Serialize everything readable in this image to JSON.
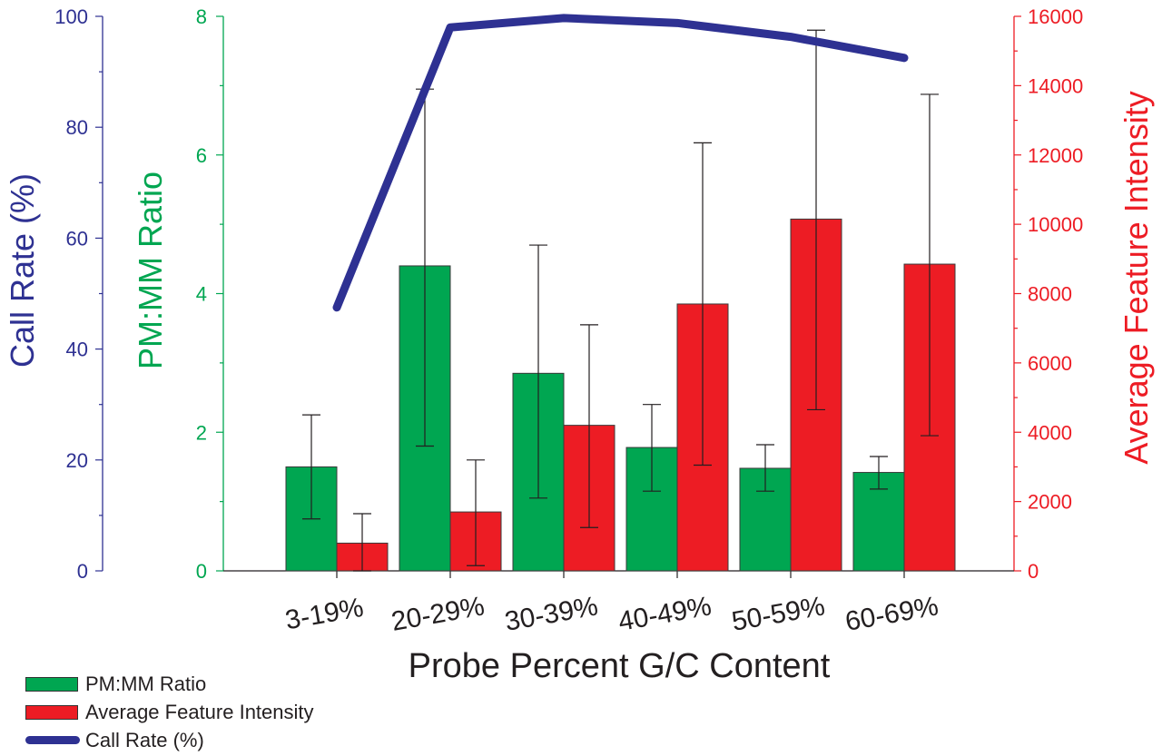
{
  "chart_data": {
    "type": "bar",
    "categories": [
      "3-19%",
      "20-29%",
      "30-39%",
      "40-49%",
      "50-59%",
      "60-69%"
    ],
    "xlabel": "Probe Percent G/C Content",
    "series": [
      {
        "name": "PM:MM Ratio",
        "type": "bar",
        "axis": "pm_mm",
        "color": "#00a651",
        "values": [
          1.5,
          4.4,
          2.85,
          1.78,
          1.48,
          1.42
        ],
        "error_low": [
          0.75,
          1.8,
          1.05,
          1.15,
          1.15,
          1.18
        ],
        "error_high": [
          2.25,
          6.95,
          4.7,
          2.4,
          1.82,
          1.65
        ]
      },
      {
        "name": "Average Feature Intensity",
        "type": "bar",
        "axis": "intensity",
        "color": "#ed1c24",
        "values": [
          800,
          1700,
          4200,
          7700,
          10150,
          8850
        ],
        "error_low": [
          0,
          150,
          1250,
          3050,
          4650,
          3900
        ],
        "error_high": [
          1650,
          3200,
          7100,
          12350,
          15600,
          13750
        ]
      },
      {
        "name": "Call Rate (%)",
        "type": "line",
        "axis": "call_rate",
        "color": "#2e3192",
        "values": [
          47.5,
          98.0,
          99.7,
          98.8,
          96.3,
          92.5
        ]
      }
    ],
    "axes": {
      "call_rate": {
        "label": "Call Rate (%)",
        "min": 0,
        "max": 100,
        "ticks": [
          "0",
          "20",
          "40",
          "60",
          "80",
          "100"
        ],
        "color": "#2e3192"
      },
      "pm_mm": {
        "label": "PM:MM Ratio",
        "min": 0,
        "max": 8,
        "ticks": [
          "0",
          "2",
          "4",
          "6",
          "8"
        ],
        "color": "#00a651"
      },
      "intensity": {
        "label": "Average Feature Intensity",
        "min": 0,
        "max": 16000,
        "ticks": [
          "0",
          "2000",
          "4000",
          "6000",
          "8000",
          "10000",
          "12000",
          "14000",
          "16000"
        ],
        "color": "#ed1c24"
      }
    },
    "legend": {
      "position": "bottom-left",
      "items": [
        {
          "label": "PM:MM Ratio",
          "color": "#00a651",
          "kind": "bar"
        },
        {
          "label": "Average Feature Intensity",
          "color": "#ed1c24",
          "kind": "bar"
        },
        {
          "label": "Call Rate (%)",
          "color": "#2e3192",
          "kind": "line"
        }
      ]
    },
    "grid": false
  }
}
